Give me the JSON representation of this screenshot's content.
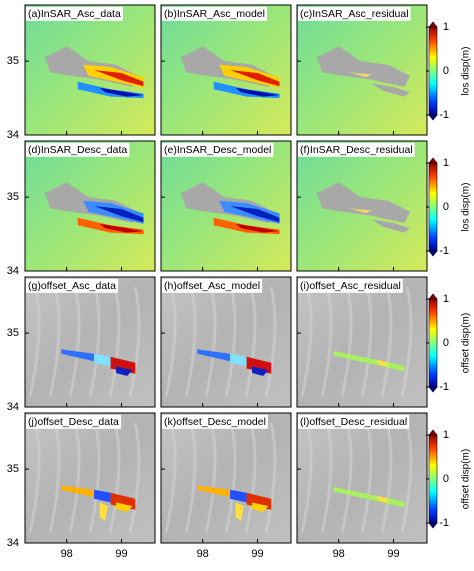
{
  "rows": [
    {
      "panels": [
        "(a)InSAR_Asc_data",
        "(b)InSAR_Asc_model",
        "(c)InSAR_Asc_residual"
      ],
      "background": "insar",
      "colorbar": {
        "label": "los disp(m)",
        "lim": [
          -1,
          1
        ],
        "ticks": [
          1,
          0,
          -1
        ]
      }
    },
    {
      "panels": [
        "(d)InSAR_Desc_data",
        "(e)InSAR_Desc_model",
        "(f)InSAR_Desc_residual"
      ],
      "background": "insar",
      "colorbar": {
        "label": "los disp(m)",
        "lim": [
          -1,
          1
        ],
        "ticks": [
          1,
          0,
          -1
        ]
      }
    },
    {
      "panels": [
        "(g)offset_Asc_data",
        "(h)offset_Asc_model",
        "(i)offset_Asc_residual"
      ],
      "background": "hillshade",
      "colorbar": {
        "label": "offset disp(m)",
        "lim": [
          -1,
          1
        ],
        "ticks": [
          1,
          0,
          -1
        ]
      }
    },
    {
      "panels": [
        "(j)offset_Desc_data",
        "(k)offset_Desc_model",
        "(l)offset_Desc_residual"
      ],
      "background": "hillshade",
      "colorbar": {
        "label": "offset disp(m)",
        "lim": [
          -1,
          1
        ],
        "ticks": [
          1,
          0,
          -1
        ]
      }
    }
  ],
  "xaxis": {
    "lim": [
      97.24,
      99.61
    ],
    "ticks": [
      98,
      99
    ]
  },
  "yaxis": {
    "lim": [
      34,
      35.76
    ],
    "ticks": [
      34,
      35
    ]
  }
}
